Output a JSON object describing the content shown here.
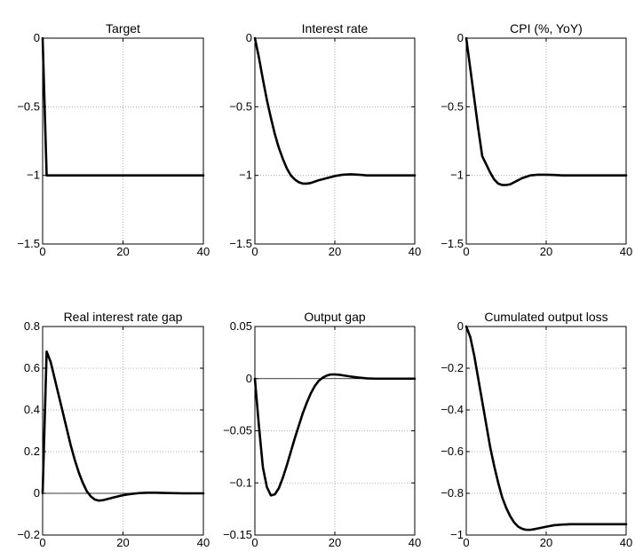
{
  "chart_data": [
    {
      "type": "line",
      "title": "Target",
      "xlim": [
        0,
        40
      ],
      "ylim": [
        -1.5,
        0
      ],
      "xticks": [
        "0",
        "20",
        "40"
      ],
      "yticks": [
        "0",
        "−0.5",
        "−1",
        "−1.5"
      ],
      "ytick_values": [
        0,
        -0.5,
        -1,
        -1.5
      ],
      "grid": true,
      "zero_line": false,
      "x": [
        0,
        1,
        2,
        40
      ],
      "values": [
        0,
        -1,
        -1,
        -1
      ]
    },
    {
      "type": "line",
      "title": "Interest rate",
      "xlim": [
        0,
        40
      ],
      "ylim": [
        -1.5,
        0
      ],
      "xticks": [
        "0",
        "20",
        "40"
      ],
      "yticks": [
        "0",
        "−0.5",
        "−1",
        "−1.5"
      ],
      "ytick_values": [
        0,
        -0.5,
        -1,
        -1.5
      ],
      "grid": true,
      "zero_line": false,
      "x": [
        0,
        1,
        2,
        3,
        4,
        5,
        6,
        7,
        8,
        9,
        10,
        11,
        12,
        13,
        14,
        15,
        16,
        18,
        20,
        22,
        24,
        26,
        28,
        30,
        35,
        40
      ],
      "values": [
        0,
        -0.14,
        -0.3,
        -0.45,
        -0.58,
        -0.7,
        -0.8,
        -0.88,
        -0.95,
        -1.0,
        -1.03,
        -1.05,
        -1.06,
        -1.06,
        -1.055,
        -1.045,
        -1.035,
        -1.02,
        -1.005,
        -0.995,
        -0.992,
        -0.995,
        -1.0,
        -1.0,
        -1.0,
        -1.0
      ]
    },
    {
      "type": "line",
      "title": "CPI (%, YoY)",
      "xlim": [
        0,
        40
      ],
      "ylim": [
        -1.5,
        0
      ],
      "xticks": [
        "0",
        "20",
        "40"
      ],
      "yticks": [
        "0",
        "−0.5",
        "−1",
        "−1.5"
      ],
      "ytick_values": [
        0,
        -0.5,
        -1,
        -1.5
      ],
      "grid": true,
      "zero_line": false,
      "x": [
        0,
        1,
        2,
        3,
        4,
        5,
        6,
        7,
        8,
        9,
        10,
        11,
        12,
        13,
        14,
        15,
        16,
        18,
        20,
        22,
        24,
        26,
        28,
        30,
        35,
        40
      ],
      "values": [
        0,
        -0.22,
        -0.44,
        -0.66,
        -0.86,
        -0.92,
        -0.98,
        -1.03,
        -1.06,
        -1.07,
        -1.07,
        -1.065,
        -1.05,
        -1.035,
        -1.02,
        -1.01,
        -1.0,
        -0.995,
        -0.995,
        -0.997,
        -1.0,
        -1.0,
        -1.0,
        -1.0,
        -1.0,
        -1.0
      ]
    },
    {
      "type": "line",
      "title": "Real interest rate gap",
      "xlim": [
        0,
        40
      ],
      "ylim": [
        -0.2,
        0.8
      ],
      "xticks": [
        "0",
        "20",
        "40"
      ],
      "yticks": [
        "0.8",
        "0.6",
        "0.4",
        "0.2",
        "0",
        "−0.2"
      ],
      "ytick_values": [
        0.8,
        0.6,
        0.4,
        0.2,
        0,
        -0.2
      ],
      "grid": true,
      "zero_line": true,
      "x": [
        0,
        1,
        2,
        3,
        4,
        5,
        6,
        7,
        8,
        9,
        10,
        11,
        12,
        13,
        14,
        15,
        16,
        18,
        20,
        22,
        24,
        26,
        28,
        30,
        35,
        40
      ],
      "values": [
        0,
        0.68,
        0.63,
        0.55,
        0.47,
        0.39,
        0.31,
        0.23,
        0.16,
        0.1,
        0.05,
        0.01,
        -0.015,
        -0.03,
        -0.035,
        -0.033,
        -0.028,
        -0.018,
        -0.009,
        -0.003,
        0.001,
        0.003,
        0.003,
        0.002,
        0.0,
        0.0
      ]
    },
    {
      "type": "line",
      "title": "Output gap",
      "xlim": [
        0,
        40
      ],
      "ylim": [
        -0.15,
        0.05
      ],
      "xticks": [
        "0",
        "20",
        "40"
      ],
      "yticks": [
        "0.05",
        "0",
        "−0.05",
        "−0.1",
        "−0.15"
      ],
      "ytick_values": [
        0.05,
        0,
        -0.05,
        -0.1,
        -0.15
      ],
      "grid": true,
      "zero_line": true,
      "x": [
        0,
        1,
        2,
        3,
        4,
        5,
        6,
        7,
        8,
        9,
        10,
        11,
        12,
        13,
        14,
        15,
        16,
        17,
        18,
        19,
        20,
        21,
        22,
        24,
        26,
        28,
        30,
        35,
        40
      ],
      "values": [
        0,
        -0.045,
        -0.085,
        -0.104,
        -0.112,
        -0.111,
        -0.105,
        -0.095,
        -0.083,
        -0.07,
        -0.057,
        -0.045,
        -0.033,
        -0.023,
        -0.014,
        -0.007,
        -0.002,
        0.001,
        0.003,
        0.004,
        0.004,
        0.0038,
        0.0032,
        0.002,
        0.001,
        0.0003,
        0.0,
        0.0,
        0.0
      ]
    },
    {
      "type": "line",
      "title": "Cumulated output loss",
      "xlim": [
        0,
        40
      ],
      "ylim": [
        -1,
        0
      ],
      "xticks": [
        "0",
        "20",
        "40"
      ],
      "yticks": [
        "0",
        "−0.2",
        "−0.4",
        "−0.6",
        "−0.8",
        "−1"
      ],
      "ytick_values": [
        0,
        -0.2,
        -0.4,
        -0.6,
        -0.8,
        -1
      ],
      "grid": true,
      "zero_line": false,
      "x": [
        0,
        1,
        2,
        3,
        4,
        5,
        6,
        7,
        8,
        9,
        10,
        11,
        12,
        13,
        14,
        15,
        16,
        17,
        18,
        20,
        22,
        24,
        26,
        28,
        30,
        35,
        40
      ],
      "values": [
        0,
        -0.05,
        -0.14,
        -0.25,
        -0.36,
        -0.47,
        -0.58,
        -0.67,
        -0.75,
        -0.82,
        -0.87,
        -0.91,
        -0.94,
        -0.96,
        -0.97,
        -0.975,
        -0.975,
        -0.972,
        -0.968,
        -0.96,
        -0.953,
        -0.95,
        -0.948,
        -0.948,
        -0.948,
        -0.948,
        -0.948
      ]
    }
  ]
}
